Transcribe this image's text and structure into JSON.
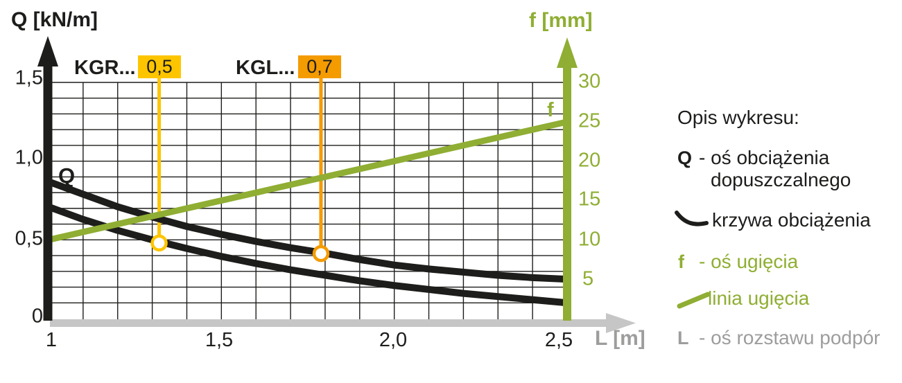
{
  "colors": {
    "black": "#1d1d1b",
    "green": "#8fae33",
    "yellow": "#fdc500",
    "orange": "#f49b00",
    "axis_gray": "#c6c6c6",
    "text_gray": "#9d9d9c"
  },
  "chart_data": {
    "type": "line",
    "grid": true,
    "x_axis": {
      "title": "L [m]",
      "range": [
        1,
        2.5
      ],
      "minor_step": 0.1,
      "ticks": [
        {
          "value": 1,
          "label": "1"
        },
        {
          "value": 1.5,
          "label": "1,5"
        },
        {
          "value": 2,
          "label": "2,0"
        },
        {
          "value": 2.5,
          "label": "2,5"
        }
      ]
    },
    "y_left_axis": {
      "title": "Q [kN/m]",
      "curve_label": "Q",
      "range": [
        0,
        1.5
      ],
      "minor_step": 0.1,
      "ticks": [
        {
          "value": 1.5,
          "label": "1,5"
        },
        {
          "value": 1.0,
          "label": "1,0"
        },
        {
          "value": 0.5,
          "label": "0,5"
        },
        {
          "value": 0,
          "label": "0"
        }
      ]
    },
    "y_right_axis": {
      "title": "f [mm]",
      "curve_label": "f",
      "range": [
        0,
        30
      ],
      "ticks": [
        {
          "value": 30,
          "label": "30"
        },
        {
          "value": 25,
          "label": "25"
        },
        {
          "value": 20,
          "label": "20"
        },
        {
          "value": 15,
          "label": "15"
        },
        {
          "value": 10,
          "label": "10"
        },
        {
          "value": 5,
          "label": "5"
        }
      ]
    },
    "series": [
      {
        "name": "load-curve-upper-kgl",
        "axis": "left",
        "color": "#1d1d1b",
        "width": 10,
        "x": [
          1.0,
          1.1,
          1.2,
          1.3,
          1.4,
          1.5,
          1.6,
          1.7,
          1.8,
          1.9,
          2.0,
          2.1,
          2.2,
          2.3,
          2.4,
          2.5
        ],
        "y": [
          0.87,
          0.79,
          0.71,
          0.645,
          0.585,
          0.535,
          0.49,
          0.45,
          0.415,
          0.375,
          0.34,
          0.315,
          0.295,
          0.275,
          0.26,
          0.25
        ]
      },
      {
        "name": "load-curve-lower-kgr",
        "axis": "left",
        "color": "#1d1d1b",
        "width": 10,
        "x": [
          1.0,
          1.1,
          1.2,
          1.3,
          1.4,
          1.5,
          1.6,
          1.7,
          1.8,
          1.9,
          2.0,
          2.1,
          2.2,
          2.3,
          2.4,
          2.5
        ],
        "y": [
          0.71,
          0.63,
          0.56,
          0.5,
          0.445,
          0.395,
          0.35,
          0.31,
          0.275,
          0.24,
          0.21,
          0.185,
          0.16,
          0.14,
          0.12,
          0.1
        ]
      },
      {
        "name": "deflection-line",
        "axis": "right",
        "color": "#8fae33",
        "width": 9,
        "x": [
          1.0,
          2.5
        ],
        "y": [
          10,
          25
        ]
      }
    ],
    "markers": [
      {
        "id": "kgr",
        "label": "KGR...",
        "value": "0,5",
        "color": "#fdc500",
        "x": 1.32,
        "q": 0.48
      },
      {
        "id": "kgl",
        "label": "KGL...",
        "value": "0,7",
        "color": "#f49b00",
        "x": 1.788,
        "q": 0.413
      }
    ]
  },
  "legend": {
    "title": "Opis wykresu:",
    "items": [
      {
        "symbol": "Q",
        "text": "- oś obciążenia",
        "text2": "dopuszczalnego"
      },
      {
        "symbol": "curve",
        "text": "krzywa obciążenia"
      },
      {
        "symbol": "f",
        "text": "- oś ugięcia"
      },
      {
        "symbol": "line",
        "text": "linia ugięcia"
      },
      {
        "symbol": "L",
        "text": "- oś rozstawu podpór"
      }
    ]
  }
}
